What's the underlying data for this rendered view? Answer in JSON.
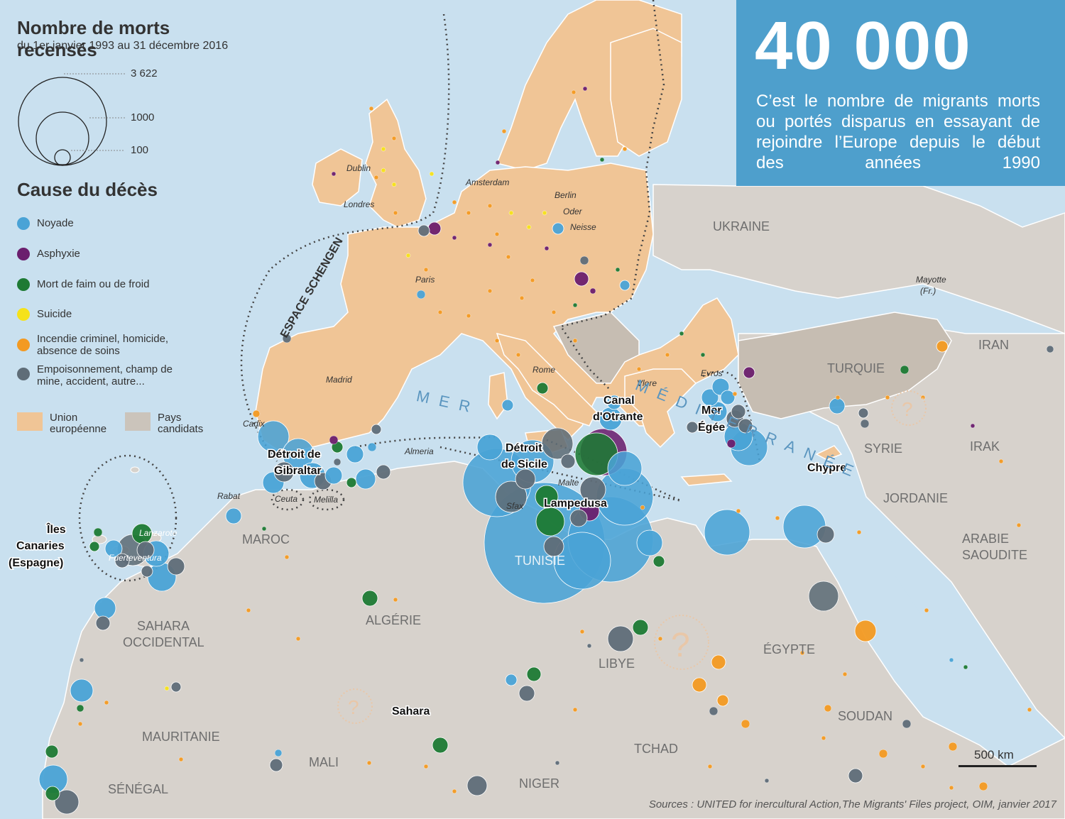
{
  "title": "Nombre de morts recensés",
  "subtitle": "du 1er janvier 1993 au 31 décembre 2016",
  "size_legend": [
    "3 622",
    "1000",
    "100"
  ],
  "cause_title": "Cause du décès",
  "causes": [
    {
      "label": "Noyade",
      "color": "#4aa3d6"
    },
    {
      "label": "Asphyxie",
      "color": "#6b1f6e"
    },
    {
      "label": "Mort de faim ou de froid",
      "color": "#1e7a34"
    },
    {
      "label": "Suicide",
      "color": "#f5e21a"
    },
    {
      "label": "Incendie criminel, homicide, absence de soins",
      "color": "#f39a22"
    },
    {
      "label": "Empoisonnement, champ de mine, accident, autre...",
      "color": "#5f6d78"
    }
  ],
  "area_legend": [
    {
      "label": "Union européenne",
      "color": "#f0c596"
    },
    {
      "label": "Pays candidats",
      "color": "#cbc4bb"
    }
  ],
  "info": {
    "headline": "40 000",
    "text": "C’est le nombre de migrants morts ou portés disparus en essayant de rejoindre l’Europe depuis le début des années 1990"
  },
  "sources": "Sources : UNITED for inercultural Action,The Migrants' Files project, OIM, janvier 2017",
  "scale": "500 km",
  "countries": [
    "UKRAINE",
    "IRAN",
    "TURQUIE",
    "SYRIE",
    "IRAK",
    "JORDANIE",
    "ARABIE SAOUDITE",
    "ÉGYPTE",
    "SOUDAN",
    "LIBYE",
    "TCHAD",
    "NIGER",
    "MALI",
    "MAURITANIE",
    "SÉNÉGAL",
    "ALGÉRIE",
    "MAROC",
    "SAHARA OCCIDENTAL",
    "TUNISIE"
  ],
  "cities": [
    "Dublin",
    "Londres",
    "Amsterdam",
    "Berlin",
    "Oder",
    "Neisse",
    "Paris",
    "Madrid",
    "Cadix",
    "Almeria",
    "Rome",
    "Vlore",
    "Evros",
    "Rabat",
    "Ceuta",
    "Melilla",
    "Malte",
    "Sfax",
    "Lanzarote",
    "Fuerteventura",
    "Mayotte (Fr.)"
  ],
  "places": [
    "Détroit de Gibraltar",
    "Détroit de Sicile",
    "Canal d'Otrante",
    "Mer Égée",
    "Lampedusa",
    "Chypre",
    "Îles Canaries (Espagne)",
    "Sahara"
  ],
  "sea_labels": [
    "MER",
    "MÉDITERRANÉE"
  ],
  "schengen_label": "ESPACE SCHENGEN"
}
